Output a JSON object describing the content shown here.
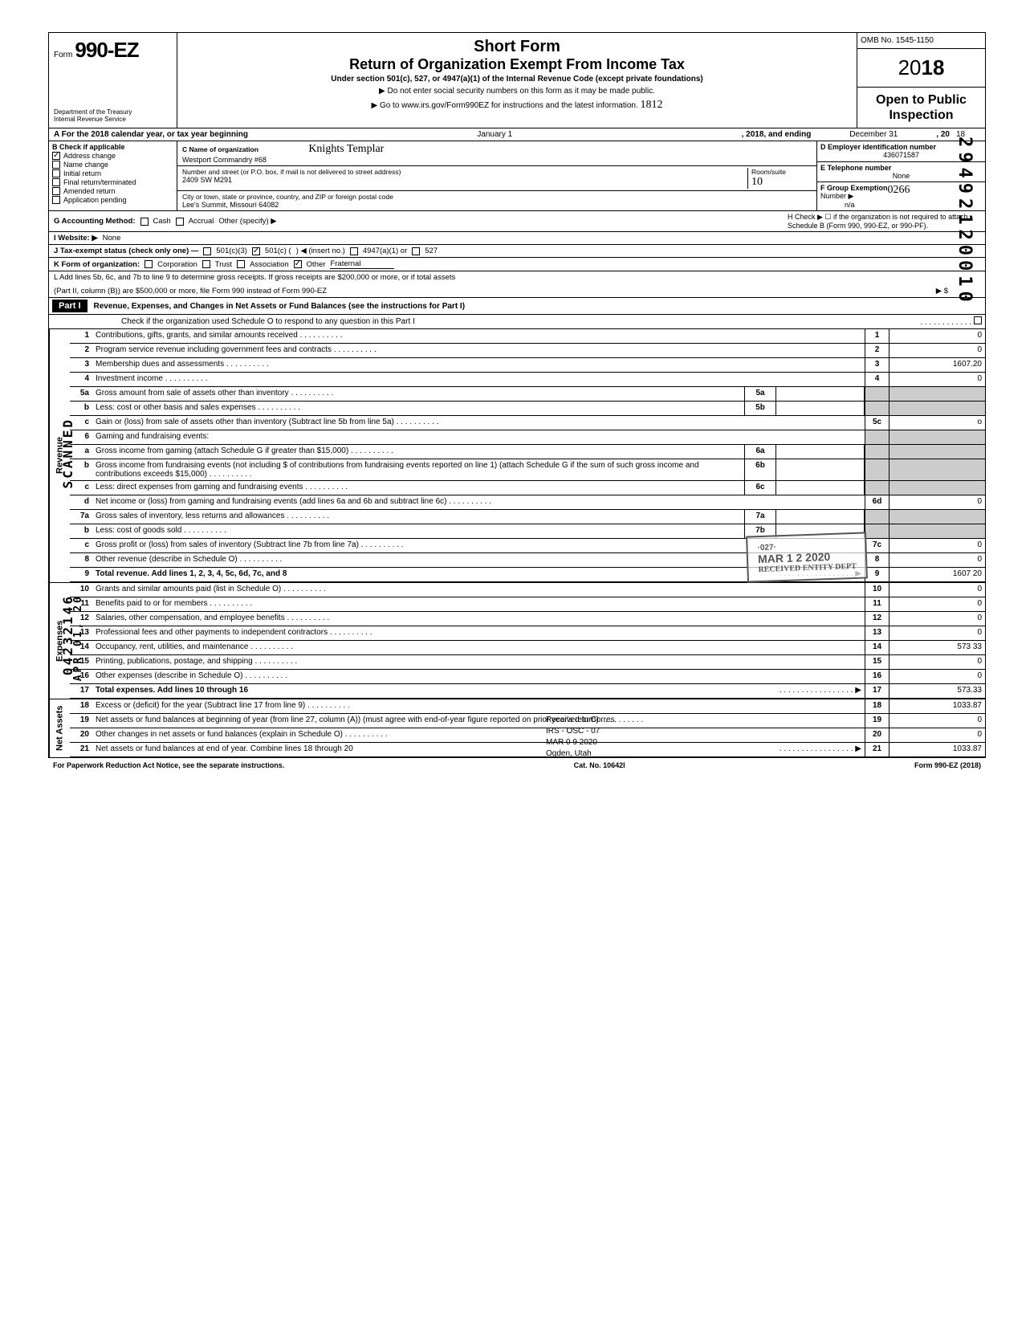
{
  "header": {
    "form_label": "Form",
    "form_number": "990-EZ",
    "dept1": "Department of the Treasury",
    "dept2": "Internal Revenue Service",
    "title1": "Short Form",
    "title2": "Return of Organization Exempt From Income Tax",
    "subtitle": "Under section 501(c), 527, or 4947(a)(1) of the Internal Revenue Code (except private foundations)",
    "note1": "▶ Do not enter social security numbers on this form as it may be made public.",
    "note2": "▶ Go to www.irs.gov/Form990EZ for instructions and the latest information.",
    "omb": "OMB No. 1545-1150",
    "year_prefix": "20",
    "year_bold": "18",
    "open_public1": "Open to Public",
    "open_public2": "Inspection"
  },
  "line_a": {
    "text_a": "A For the 2018 calendar year, or tax year beginning",
    "begin_date": "January 1",
    "text_b": ", 2018, and ending",
    "end_date": "December 31",
    "text_c": ", 20",
    "end_year": "18"
  },
  "section_b": {
    "label": "B Check if applicable",
    "items": [
      {
        "label": "Address change",
        "checked": true
      },
      {
        "label": "Name change",
        "checked": false
      },
      {
        "label": "Initial return",
        "checked": false
      },
      {
        "label": "Final return/terminated",
        "checked": false
      },
      {
        "label": "Amended return",
        "checked": false
      },
      {
        "label": "Application pending",
        "checked": false
      }
    ]
  },
  "section_c": {
    "name_label": "C Name of organization",
    "name_handwritten": "Knights Templar",
    "name_value": "Westport Commandry #68",
    "street_label": "Number and street (or P.O. box, if mail is not delivered to street address)",
    "room_label": "Room/suite",
    "street_value": "2409 SW M291",
    "room_value": "10",
    "city_label": "City or town, state or province, country, and ZIP or foreign postal code",
    "city_value": "Lee's Summit,  Missouri 64082"
  },
  "section_de": {
    "d_label": "D Employer identification number",
    "d_value": "436071587",
    "e_label": "E Telephone number",
    "e_value": "None",
    "f_label": "F Group Exemption",
    "f_label2": "Number ▶",
    "f_handwritten": "0266",
    "f_value": "n/a"
  },
  "line_g": {
    "label": "G Accounting Method:",
    "opts": [
      "Cash",
      "Accrual"
    ],
    "other": "Other (specify) ▶"
  },
  "line_h": {
    "text": "H Check ▶ ☐ if the organization is not required to attach Schedule B (Form 990, 990-EZ, or 990-PF)."
  },
  "line_i": {
    "label": "I  Website: ▶",
    "value": "None"
  },
  "line_j": {
    "label": "J Tax-exempt status (check only one) —",
    "opts": [
      {
        "label": "501(c)(3)",
        "checked": false
      },
      {
        "label": "501(c) (",
        "checked": true
      },
      {
        "label": ") ◀ (insert no.)",
        "checked": false
      },
      {
        "label": "4947(a)(1) or",
        "checked": false
      },
      {
        "label": "527",
        "checked": false
      }
    ]
  },
  "line_k": {
    "label": "K Form of organization:",
    "opts": [
      {
        "label": "Corporation",
        "checked": false
      },
      {
        "label": "Trust",
        "checked": false
      },
      {
        "label": "Association",
        "checked": false
      },
      {
        "label": "Other",
        "checked": true
      }
    ],
    "other_val": "Fraternal"
  },
  "line_l": {
    "text1": "L Add lines 5b, 6c, and 7b to line 9 to determine gross receipts. If gross receipts are $200,000 or more, or if total assets",
    "text2": "(Part II, column (B)) are $500,000 or more, file Form 990 instead of Form 990-EZ",
    "arrow": "▶  $"
  },
  "part1": {
    "header": "Part I",
    "title": "Revenue, Expenses, and Changes in Net Assets or Fund Balances (see the instructions for Part I)",
    "check_text": "Check if the organization used Schedule O to respond to any question in this Part I"
  },
  "revenue_rows": [
    {
      "num": "1",
      "desc": "Contributions, gifts, grants, and similar amounts received",
      "line": "1",
      "amount": "0"
    },
    {
      "num": "2",
      "desc": "Program service revenue including government fees and contracts",
      "line": "2",
      "amount": "0"
    },
    {
      "num": "3",
      "desc": "Membership dues and assessments",
      "line": "3",
      "amount": "1607.20"
    },
    {
      "num": "4",
      "desc": "Investment income",
      "line": "4",
      "amount": "0"
    },
    {
      "num": "5a",
      "desc": "Gross amount from sale of assets other than inventory",
      "sub": "5a",
      "subval": ""
    },
    {
      "num": "b",
      "desc": "Less: cost or other basis and sales expenses",
      "sub": "5b",
      "subval": ""
    },
    {
      "num": "c",
      "desc": "Gain or (loss) from sale of assets other than inventory (Subtract line 5b from line 5a)",
      "line": "5c",
      "amount": "o"
    },
    {
      "num": "6",
      "desc": "Gaming and fundraising events:"
    },
    {
      "num": "a",
      "desc": "Gross income from gaming (attach Schedule G if greater than $15,000)",
      "sub": "6a",
      "subval": ""
    },
    {
      "num": "b",
      "desc": "Gross income from fundraising events (not including  $                              of contributions from fundraising events reported on line 1) (attach Schedule G if the sum of such gross income and contributions exceeds $15,000)",
      "sub": "6b",
      "subval": ""
    },
    {
      "num": "c",
      "desc": "Less: direct expenses from gaming and fundraising events",
      "sub": "6c",
      "subval": ""
    },
    {
      "num": "d",
      "desc": "Net income or (loss) from gaming and fundraising events (add lines 6a and 6b and subtract line 6c)",
      "line": "6d",
      "amount": "0"
    },
    {
      "num": "7a",
      "desc": "Gross sales of inventory, less returns and allowances",
      "sub": "7a",
      "subval": ""
    },
    {
      "num": "b",
      "desc": "Less: cost of goods sold",
      "sub": "7b",
      "subval": ""
    },
    {
      "num": "c",
      "desc": "Gross profit or (loss) from sales of inventory (Subtract line 7b from line 7a)",
      "line": "7c",
      "amount": "0"
    },
    {
      "num": "8",
      "desc": "Other revenue (describe in Schedule O)",
      "line": "8",
      "amount": "0"
    },
    {
      "num": "9",
      "desc": "Total revenue. Add lines 1, 2, 3, 4, 5c, 6d, 7c, and 8",
      "line": "9",
      "amount": "1607 20",
      "bold": true,
      "arrow": true
    }
  ],
  "expense_rows": [
    {
      "num": "10",
      "desc": "Grants and similar amounts paid (list in Schedule O)",
      "line": "10",
      "amount": "0"
    },
    {
      "num": "11",
      "desc": "Benefits paid to or for members",
      "line": "11",
      "amount": "0"
    },
    {
      "num": "12",
      "desc": "Salaries, other compensation, and employee benefits",
      "line": "12",
      "amount": "0"
    },
    {
      "num": "13",
      "desc": "Professional fees and other payments to independent contractors",
      "line": "13",
      "amount": "0"
    },
    {
      "num": "14",
      "desc": "Occupancy, rent, utilities, and maintenance",
      "line": "14",
      "amount": "573 33"
    },
    {
      "num": "15",
      "desc": "Printing, publications, postage, and shipping",
      "line": "15",
      "amount": "0"
    },
    {
      "num": "16",
      "desc": "Other expenses (describe in Schedule O)",
      "line": "16",
      "amount": "0"
    },
    {
      "num": "17",
      "desc": "Total expenses. Add lines 10 through 16",
      "line": "17",
      "amount": "573.33",
      "bold": true,
      "arrow": true
    }
  ],
  "netassets_rows": [
    {
      "num": "18",
      "desc": "Excess or (deficit) for the year (Subtract line 17 from line 9)",
      "line": "18",
      "amount": "1033.87"
    },
    {
      "num": "19",
      "desc": "Net assets or fund balances at beginning of year (from line 27, column (A)) (must agree with end-of-year figure reported on prior year's return)",
      "line": "19",
      "amount": "0"
    },
    {
      "num": "20",
      "desc": "Other changes in net assets or fund balances (explain in Schedule O)",
      "line": "20",
      "amount": "0"
    },
    {
      "num": "21",
      "desc": "Net assets or fund balances at end of year. Combine lines 18 through 20",
      "line": "21",
      "amount": "1033.87",
      "arrow": true
    }
  ],
  "side_labels": {
    "revenue": "Revenue",
    "expenses": "Expenses",
    "netassets": "Net Assets"
  },
  "footer": {
    "left": "For Paperwork Reduction Act Notice, see the separate instructions.",
    "center": "Cat. No. 10642I",
    "right": "Form 990-EZ (2018)"
  },
  "stamps": {
    "scanned": "SCANNED",
    "side_number": "04232146",
    "side_date": "APR 01, 20",
    "right_number": "29492120010",
    "date_stamp1": "MAR 1 2 2020",
    "received_entity": "RECEIVED ENTITY DEPT",
    "received_corres1": "Received In Corres",
    "received_corres2": "IRS - OSC - 07",
    "received_corres3": "MAR 0 9 2020",
    "received_corres4": "Ogden, Utah",
    "handwritten_top": "1812"
  }
}
